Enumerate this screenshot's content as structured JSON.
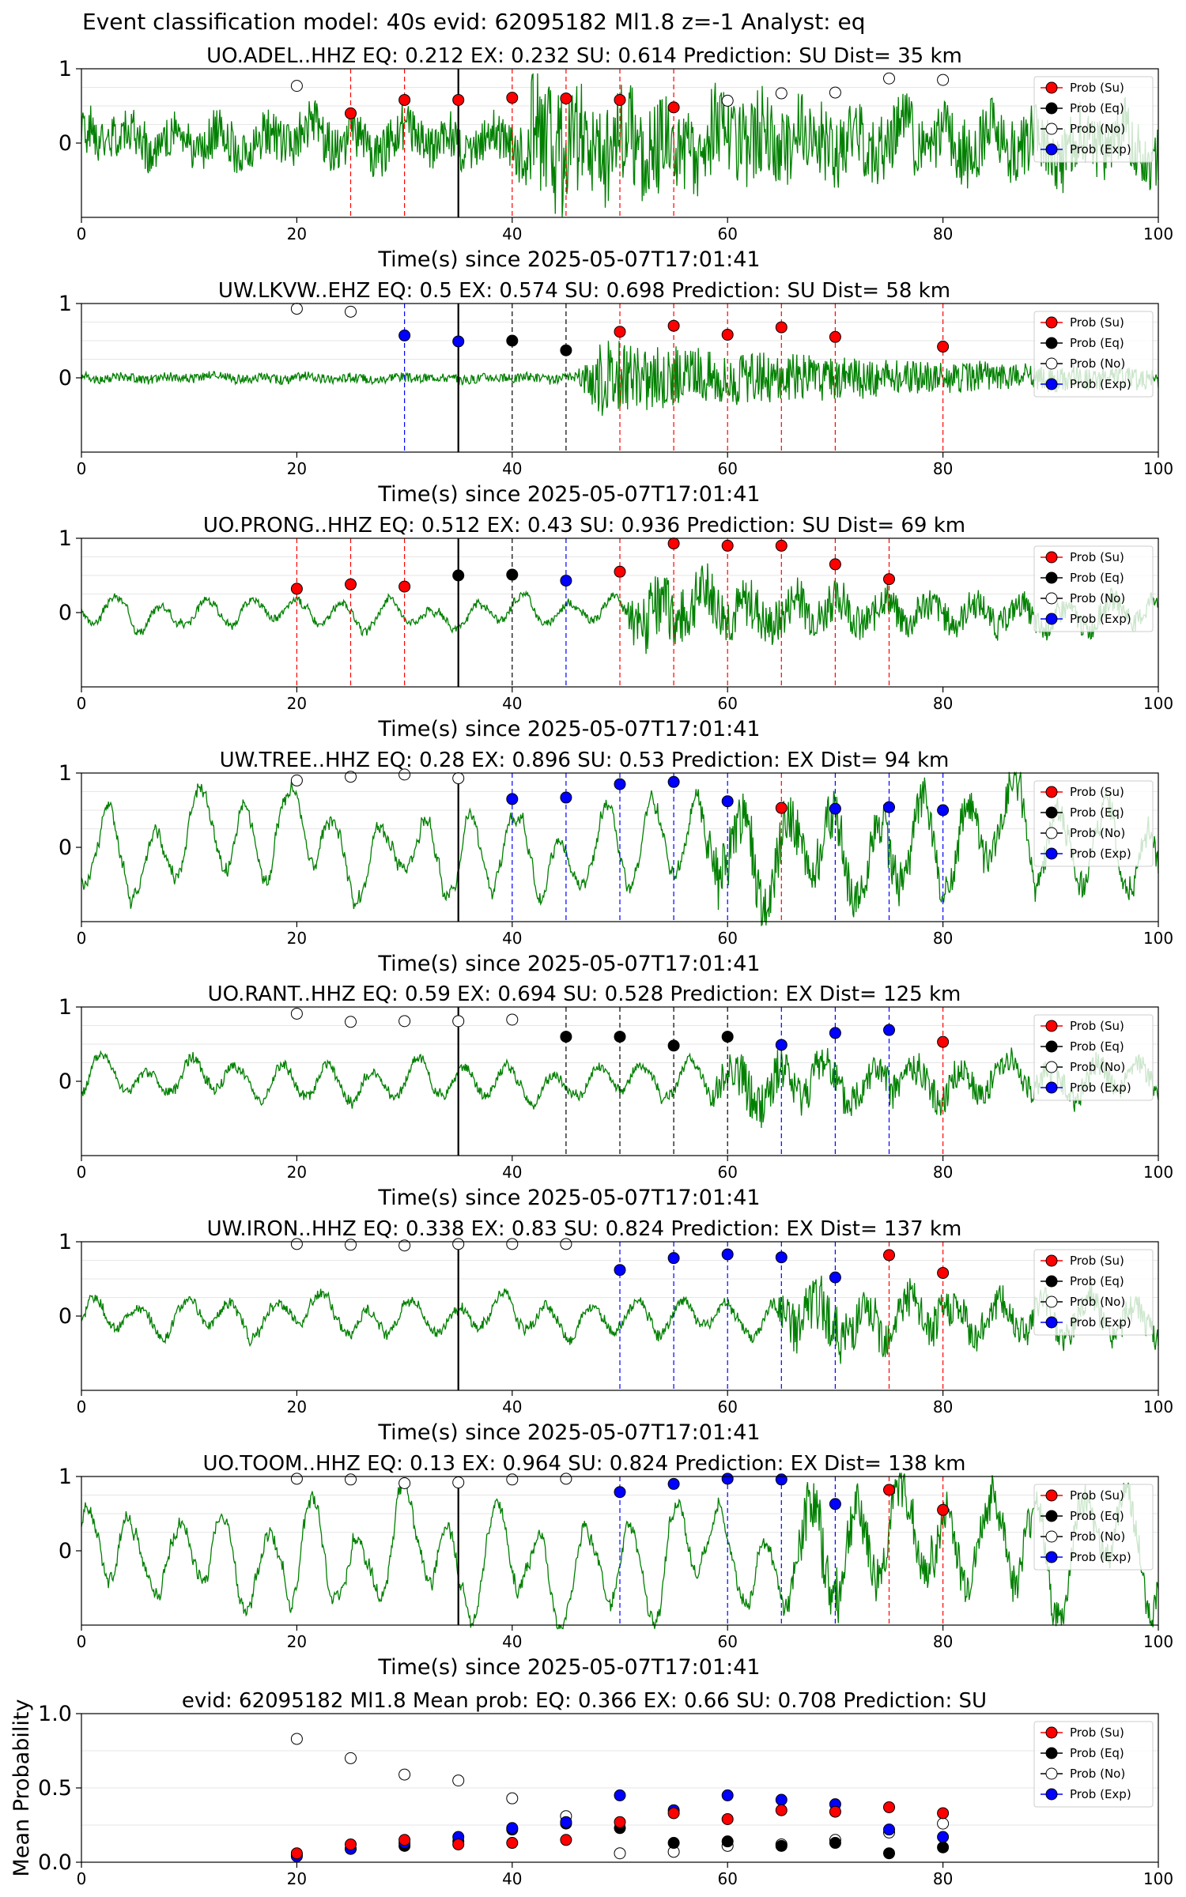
{
  "figure_title": "Event classification model: 40s evid: 62095182 Ml1.8 z=-1 Analyst: eq",
  "colors": {
    "waveform": "#008000",
    "su": "#ff0000",
    "eq": "#000000",
    "no": "#ffffff",
    "exp": "#0000ff",
    "origin_line": "#000000"
  },
  "legend_labels": [
    "Prob (Su)",
    "Prob (Eq)",
    "Prob (No)",
    "Prob (Exp)"
  ],
  "chart_data": [
    {
      "type": "line",
      "title": "UO.ADEL..HHZ   EQ: 0.212  EX: 0.232  SU: 0.614   Prediction: SU    Dist= 35 km",
      "xlabel": "Time(s) since 2025-05-07T17:01:41",
      "xlim": [
        0,
        100
      ],
      "ylim": [
        -1,
        1
      ],
      "xticks": [
        "0",
        "20",
        "40",
        "60",
        "80",
        "100"
      ],
      "yticks": [
        "1",
        "0"
      ],
      "origin_time": 35,
      "legend": "top-right",
      "waveform": {
        "onset": 40,
        "pre_noise": 0.4,
        "post_amp": 0.7,
        "low_freq": 0.15,
        "seed": 1
      },
      "points": [
        {
          "x": 20,
          "y": 0.77,
          "class": "no"
        },
        {
          "x": 25,
          "y": 0.4,
          "class": "su",
          "line": true
        },
        {
          "x": 30,
          "y": 0.58,
          "class": "su",
          "line": true
        },
        {
          "x": 35,
          "y": 0.58,
          "class": "su"
        },
        {
          "x": 40,
          "y": 0.61,
          "class": "su",
          "line": true
        },
        {
          "x": 45,
          "y": 0.6,
          "class": "su",
          "line": true
        },
        {
          "x": 50,
          "y": 0.58,
          "class": "su",
          "line": true
        },
        {
          "x": 55,
          "y": 0.48,
          "class": "su",
          "line": true
        },
        {
          "x": 60,
          "y": 0.57,
          "class": "no"
        },
        {
          "x": 65,
          "y": 0.67,
          "class": "no"
        },
        {
          "x": 70,
          "y": 0.68,
          "class": "no"
        },
        {
          "x": 75,
          "y": 0.87,
          "class": "no"
        },
        {
          "x": 80,
          "y": 0.85,
          "class": "no"
        }
      ]
    },
    {
      "type": "line",
      "title": "UW.LKVW..EHZ   EQ: 0.5  EX: 0.574  SU: 0.698   Prediction: SU    Dist= 58 km",
      "xlabel": "Time(s) since 2025-05-07T17:01:41",
      "xlim": [
        0,
        100
      ],
      "ylim": [
        -1,
        1
      ],
      "xticks": [
        "0",
        "20",
        "40",
        "60",
        "80",
        "100"
      ],
      "yticks": [
        "1",
        "0"
      ],
      "origin_time": 35,
      "legend": "top-right",
      "waveform": {
        "onset": 46,
        "pre_noise": 0.08,
        "post_amp": 0.6,
        "low_freq": 0.02,
        "seed": 2
      },
      "points": [
        {
          "x": 20,
          "y": 0.93,
          "class": "no"
        },
        {
          "x": 25,
          "y": 0.89,
          "class": "no"
        },
        {
          "x": 30,
          "y": 0.57,
          "class": "exp",
          "line": true
        },
        {
          "x": 35,
          "y": 0.49,
          "class": "exp"
        },
        {
          "x": 40,
          "y": 0.5,
          "class": "eq",
          "line": true
        },
        {
          "x": 45,
          "y": 0.37,
          "class": "eq",
          "line": true
        },
        {
          "x": 50,
          "y": 0.62,
          "class": "su",
          "line": true
        },
        {
          "x": 55,
          "y": 0.7,
          "class": "su",
          "line": true
        },
        {
          "x": 60,
          "y": 0.58,
          "class": "su",
          "line": true
        },
        {
          "x": 65,
          "y": 0.68,
          "class": "su",
          "line": true
        },
        {
          "x": 70,
          "y": 0.55,
          "class": "su",
          "line": true
        },
        {
          "x": 80,
          "y": 0.42,
          "class": "su",
          "line": true
        }
      ]
    },
    {
      "type": "line",
      "title": "UO.PRONG..HHZ   EQ: 0.512  EX: 0.43  SU: 0.936   Prediction: SU    Dist= 69 km",
      "xlabel": "Time(s) since 2025-05-07T17:01:41",
      "xlim": [
        0,
        100
      ],
      "ylim": [
        -1,
        1
      ],
      "xticks": [
        "0",
        "20",
        "40",
        "60",
        "80",
        "100"
      ],
      "yticks": [
        "1",
        "0"
      ],
      "origin_time": 35,
      "legend": "top-right",
      "waveform": {
        "onset": 50,
        "pre_noise": 0.06,
        "post_amp": 0.55,
        "low_freq": 0.15,
        "seed": 3
      },
      "points": [
        {
          "x": 20,
          "y": 0.32,
          "class": "su",
          "line": true
        },
        {
          "x": 25,
          "y": 0.38,
          "class": "su",
          "line": true
        },
        {
          "x": 30,
          "y": 0.35,
          "class": "su",
          "line": true
        },
        {
          "x": 35,
          "y": 0.5,
          "class": "eq"
        },
        {
          "x": 40,
          "y": 0.51,
          "class": "eq",
          "line": true
        },
        {
          "x": 45,
          "y": 0.43,
          "class": "exp",
          "line": true
        },
        {
          "x": 50,
          "y": 0.55,
          "class": "su",
          "line": true
        },
        {
          "x": 55,
          "y": 0.93,
          "class": "su",
          "line": true
        },
        {
          "x": 60,
          "y": 0.9,
          "class": "su",
          "line": true
        },
        {
          "x": 65,
          "y": 0.9,
          "class": "su",
          "line": true
        },
        {
          "x": 70,
          "y": 0.65,
          "class": "su",
          "line": true
        },
        {
          "x": 75,
          "y": 0.45,
          "class": "su",
          "line": true
        }
      ]
    },
    {
      "type": "line",
      "title": "UW.TREE..HHZ   EQ: 0.28  EX: 0.896  SU: 0.53   Prediction: EX    Dist= 94 km",
      "xlabel": "Time(s) since 2025-05-07T17:01:41",
      "xlim": [
        0,
        100
      ],
      "ylim": [
        -1,
        1
      ],
      "xticks": [
        "0",
        "20",
        "40",
        "60",
        "80",
        "100"
      ],
      "yticks": [
        "1",
        "0"
      ],
      "origin_time": 35,
      "legend": "top-right",
      "waveform": {
        "onset": 57,
        "pre_noise": 0.08,
        "post_amp": 0.5,
        "low_freq": 0.5,
        "seed": 4
      },
      "points": [
        {
          "x": 20,
          "y": 0.9,
          "class": "no"
        },
        {
          "x": 25,
          "y": 0.95,
          "class": "no"
        },
        {
          "x": 30,
          "y": 0.98,
          "class": "no"
        },
        {
          "x": 35,
          "y": 0.93,
          "class": "no"
        },
        {
          "x": 40,
          "y": 0.65,
          "class": "exp",
          "line": true
        },
        {
          "x": 45,
          "y": 0.67,
          "class": "exp",
          "line": true
        },
        {
          "x": 50,
          "y": 0.85,
          "class": "exp",
          "line": true
        },
        {
          "x": 55,
          "y": 0.88,
          "class": "exp",
          "line": true
        },
        {
          "x": 60,
          "y": 0.62,
          "class": "exp",
          "line": true
        },
        {
          "x": 65,
          "y": 0.53,
          "class": "su",
          "line": true
        },
        {
          "x": 70,
          "y": 0.52,
          "class": "exp",
          "line": true
        },
        {
          "x": 75,
          "y": 0.54,
          "class": "exp",
          "line": true
        },
        {
          "x": 80,
          "y": 0.5,
          "class": "exp",
          "line": true
        }
      ]
    },
    {
      "type": "line",
      "title": "UO.RANT..HHZ   EQ: 0.59  EX: 0.694  SU: 0.528   Prediction: EX    Dist= 125 km",
      "xlabel": "Time(s) since 2025-05-07T17:01:41",
      "xlim": [
        0,
        100
      ],
      "ylim": [
        -1,
        1
      ],
      "xticks": [
        "0",
        "20",
        "40",
        "60",
        "80",
        "100"
      ],
      "yticks": [
        "1",
        "0"
      ],
      "origin_time": 35,
      "legend": "top-right",
      "waveform": {
        "onset": 58,
        "pre_noise": 0.08,
        "post_amp": 0.4,
        "low_freq": 0.2,
        "seed": 5
      },
      "points": [
        {
          "x": 20,
          "y": 0.91,
          "class": "no"
        },
        {
          "x": 25,
          "y": 0.8,
          "class": "no"
        },
        {
          "x": 30,
          "y": 0.81,
          "class": "no"
        },
        {
          "x": 35,
          "y": 0.81,
          "class": "no"
        },
        {
          "x": 40,
          "y": 0.83,
          "class": "no"
        },
        {
          "x": 45,
          "y": 0.6,
          "class": "eq",
          "line": true
        },
        {
          "x": 50,
          "y": 0.6,
          "class": "eq",
          "line": true
        },
        {
          "x": 55,
          "y": 0.48,
          "class": "eq",
          "line": true
        },
        {
          "x": 60,
          "y": 0.6,
          "class": "eq",
          "line": true
        },
        {
          "x": 65,
          "y": 0.49,
          "class": "exp",
          "line": true
        },
        {
          "x": 70,
          "y": 0.65,
          "class": "exp",
          "line": true
        },
        {
          "x": 75,
          "y": 0.69,
          "class": "exp",
          "line": true
        },
        {
          "x": 80,
          "y": 0.53,
          "class": "su",
          "line": true
        }
      ]
    },
    {
      "type": "line",
      "title": "UW.IRON..HHZ   EQ: 0.338  EX: 0.83  SU: 0.824   Prediction: EX    Dist= 137 km",
      "xlabel": "Time(s) since 2025-05-07T17:01:41",
      "xlim": [
        0,
        100
      ],
      "ylim": [
        -1,
        1
      ],
      "xticks": [
        "0",
        "20",
        "40",
        "60",
        "80",
        "100"
      ],
      "yticks": [
        "1",
        "0"
      ],
      "origin_time": 35,
      "legend": "top-right",
      "waveform": {
        "onset": 64,
        "pre_noise": 0.08,
        "post_amp": 0.45,
        "low_freq": 0.2,
        "seed": 6
      },
      "points": [
        {
          "x": 20,
          "y": 0.97,
          "class": "no"
        },
        {
          "x": 25,
          "y": 0.96,
          "class": "no"
        },
        {
          "x": 30,
          "y": 0.95,
          "class": "no"
        },
        {
          "x": 35,
          "y": 0.97,
          "class": "no"
        },
        {
          "x": 40,
          "y": 0.97,
          "class": "no"
        },
        {
          "x": 45,
          "y": 0.97,
          "class": "no"
        },
        {
          "x": 50,
          "y": 0.62,
          "class": "exp",
          "line": true
        },
        {
          "x": 55,
          "y": 0.78,
          "class": "exp",
          "line": true
        },
        {
          "x": 60,
          "y": 0.83,
          "class": "exp",
          "line": true
        },
        {
          "x": 65,
          "y": 0.79,
          "class": "exp",
          "line": true
        },
        {
          "x": 70,
          "y": 0.52,
          "class": "exp",
          "line": true
        },
        {
          "x": 75,
          "y": 0.82,
          "class": "su",
          "line": true
        },
        {
          "x": 80,
          "y": 0.58,
          "class": "su",
          "line": true
        }
      ]
    },
    {
      "type": "line",
      "title": "UO.TOOM..HHZ   EQ: 0.13  EX: 0.964  SU: 0.824   Prediction: EX    Dist= 138 km",
      "xlabel": "Time(s) since 2025-05-07T17:01:41",
      "xlim": [
        0,
        100
      ],
      "ylim": [
        -1,
        1
      ],
      "xticks": [
        "0",
        "20",
        "40",
        "60",
        "80",
        "100"
      ],
      "yticks": [
        "1",
        "0"
      ],
      "origin_time": 35,
      "legend": "top-right",
      "waveform": {
        "onset": 65,
        "pre_noise": 0.08,
        "post_amp": 0.45,
        "low_freq": 0.55,
        "seed": 7
      },
      "points": [
        {
          "x": 20,
          "y": 0.97,
          "class": "no"
        },
        {
          "x": 25,
          "y": 0.96,
          "class": "no"
        },
        {
          "x": 30,
          "y": 0.91,
          "class": "no"
        },
        {
          "x": 35,
          "y": 0.92,
          "class": "no"
        },
        {
          "x": 40,
          "y": 0.96,
          "class": "no"
        },
        {
          "x": 45,
          "y": 0.97,
          "class": "no"
        },
        {
          "x": 50,
          "y": 0.79,
          "class": "exp",
          "line": true
        },
        {
          "x": 55,
          "y": 0.9,
          "class": "exp"
        },
        {
          "x": 60,
          "y": 0.97,
          "class": "exp",
          "line": true
        },
        {
          "x": 65,
          "y": 0.96,
          "class": "exp",
          "line": true
        },
        {
          "x": 70,
          "y": 0.63,
          "class": "exp",
          "line": true
        },
        {
          "x": 75,
          "y": 0.82,
          "class": "su",
          "line": true
        },
        {
          "x": 80,
          "y": 0.55,
          "class": "su",
          "line": true
        }
      ]
    },
    {
      "type": "scatter",
      "title": "evid: 62095182  Ml1.8   Mean prob:   EQ: 0.366  EX: 0.66  SU: 0.708   Prediction: SU",
      "ylabel": "Mean Probability",
      "xlim": [
        0,
        100
      ],
      "ylim": [
        0,
        1
      ],
      "xticks": [
        "0",
        "20",
        "40",
        "60",
        "80",
        "100"
      ],
      "yticks": [
        "1.0",
        "0.5",
        "0.0"
      ],
      "legend": "top-right",
      "x": [
        20,
        25,
        30,
        35,
        40,
        45,
        50,
        55,
        60,
        65,
        70,
        75,
        80
      ],
      "series": [
        {
          "name": "Prob (No)",
          "class": "no",
          "values": [
            0.83,
            0.7,
            0.59,
            0.55,
            0.43,
            0.31,
            0.06,
            0.07,
            0.11,
            0.12,
            0.15,
            0.2,
            0.26
          ]
        },
        {
          "name": "Prob (Eq)",
          "class": "eq",
          "values": [
            0.05,
            0.09,
            0.11,
            0.14,
            0.22,
            0.26,
            0.23,
            0.13,
            0.14,
            0.11,
            0.13,
            0.06,
            0.1
          ]
        },
        {
          "name": "Prob (Exp)",
          "class": "exp",
          "values": [
            0.04,
            0.09,
            0.13,
            0.17,
            0.23,
            0.27,
            0.45,
            0.35,
            0.45,
            0.42,
            0.39,
            0.22,
            0.17
          ]
        },
        {
          "name": "Prob (Su)",
          "class": "su",
          "values": [
            0.06,
            0.12,
            0.15,
            0.12,
            0.13,
            0.15,
            0.27,
            0.33,
            0.29,
            0.35,
            0.34,
            0.37,
            0.33
          ]
        }
      ]
    }
  ]
}
